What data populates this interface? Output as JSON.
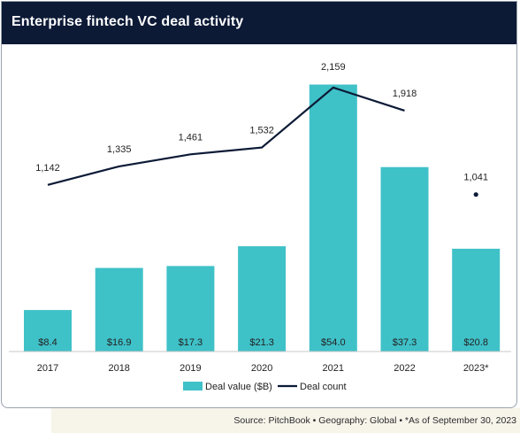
{
  "header": {
    "title": "Enterprise fintech VC deal activity"
  },
  "source": {
    "text": "Source: PitchBook  •  Geography: Global  •  *As of September 30, 2023"
  },
  "colors": {
    "bar": "#3fc1c8",
    "line": "#0c1a36",
    "title_bg": "#0c1a36",
    "source_bg": "#f7f4ea"
  },
  "chart_data": {
    "type": "bar",
    "categories": [
      "2017",
      "2018",
      "2019",
      "2020",
      "2021",
      "2022",
      "2023*"
    ],
    "series": [
      {
        "name": "Deal value ($B)",
        "type": "bar",
        "axis": "left",
        "values": [
          8.4,
          16.9,
          17.3,
          21.3,
          54.0,
          37.3,
          20.8
        ],
        "labels": [
          "$8.4",
          "$16.9",
          "$17.3",
          "$21.3",
          "$54.0",
          "$37.3",
          "$20.8"
        ]
      },
      {
        "name": "Deal count",
        "type": "line",
        "axis": "right",
        "values": [
          1142,
          1335,
          1461,
          1532,
          2159,
          1918,
          1041
        ],
        "labels": [
          "1,142",
          "1,335",
          "1,461",
          "1,532",
          "2,159",
          "1,918",
          "1,041"
        ],
        "last_point_detached": true
      }
    ],
    "title": "Enterprise fintech VC deal activity",
    "xlabel": "",
    "ylabel": "",
    "ylim_bar": [
      0,
      60
    ],
    "ylim_line": [
      -600,
      2500
    ],
    "grid": false,
    "legend_position": "bottom"
  }
}
